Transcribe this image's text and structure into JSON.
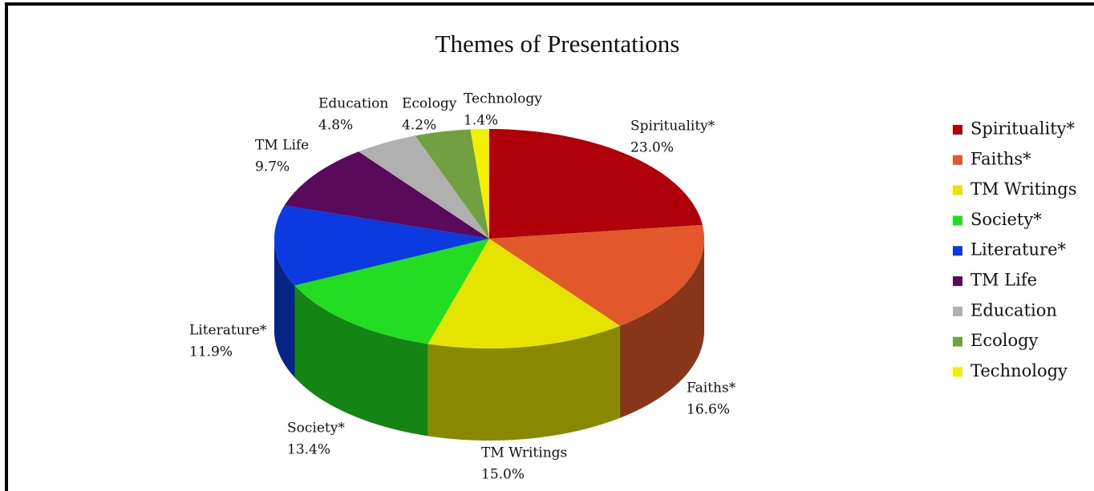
{
  "chart_data": {
    "type": "pie3d",
    "title": "Themes of Presentations",
    "categories": [
      "Spirituality*",
      "Faiths*",
      "TM Writings",
      "Society*",
      "Literature*",
      "TM Life",
      "Education",
      "Ecology",
      "Technology"
    ],
    "values": [
      23,
      16.6,
      15,
      13.4,
      11.9,
      9.7,
      4.8,
      4.2,
      1.4
    ],
    "value_labels": [
      "23.0%",
      "16.6%",
      "15.0%",
      "13.4%",
      "11.9%",
      "9.7%",
      "4.8%",
      "4.2%",
      "1.4%"
    ],
    "colors": [
      "#b0000a",
      "#e2582a",
      "#e4e400",
      "#22dd22",
      "#0a3ae0",
      "#5a0a5a",
      "#b0b0b0",
      "#70a040",
      "#f0f000"
    ],
    "legend": "right"
  }
}
